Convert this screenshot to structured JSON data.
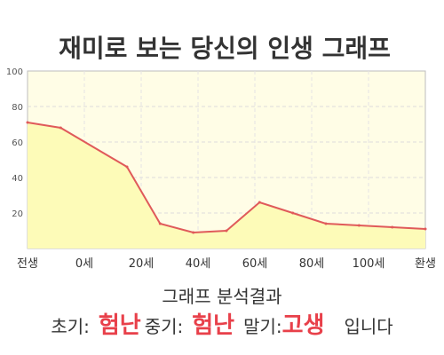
{
  "chart_data": {
    "type": "area",
    "title": "재미로 보는 당신의 인생 그래프",
    "x_positions": [
      -10,
      0,
      20,
      30,
      40,
      50,
      60,
      70,
      80,
      90,
      100,
      110
    ],
    "values": [
      71,
      68,
      46,
      14,
      9,
      10,
      26,
      20,
      14,
      13,
      12,
      11
    ],
    "xlim": [
      -10,
      110
    ],
    "ylim": [
      0,
      100
    ],
    "yticks": [
      "20",
      "40",
      "60",
      "80",
      "100"
    ],
    "xtick_labels": [
      "전생",
      "0세",
      "20세",
      "40세",
      "60세",
      "80세",
      "100세",
      "환생"
    ],
    "grid": true,
    "colors": {
      "line": "#e05a5a",
      "fill": "#fdfbb8",
      "plot_bg": "#fffde6"
    }
  },
  "result": {
    "title": "그래프 분석결과",
    "early_label": "초기:",
    "early_value": "험난",
    "mid_label": "중기:",
    "mid_value": "험난",
    "late_label": "말기:",
    "late_value": "고생",
    "suffix": "입니다"
  }
}
